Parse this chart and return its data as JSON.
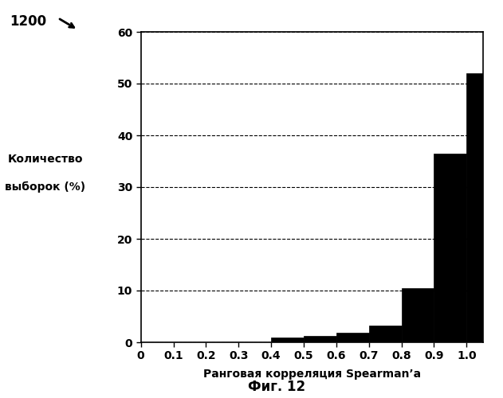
{
  "title": "",
  "xlabel": "Ранговая корреляция Spearman’a",
  "ylabel_line1": "Количество",
  "ylabel_line2": "выборок (%)",
  "fig_label": "Фиг. 12",
  "corner_label": "1200",
  "bar_edges": [
    0.0,
    0.1,
    0.2,
    0.3,
    0.4,
    0.5,
    0.6,
    0.7,
    0.8,
    0.9,
    1.0
  ],
  "bar_heights": [
    0.0,
    0.0,
    0.0,
    0.0,
    1.0,
    1.3,
    1.8,
    3.2,
    10.5,
    36.5,
    52.0
  ],
  "bar_color": "#000000",
  "ylim": [
    0,
    60
  ],
  "xlim": [
    0,
    1.05
  ],
  "yticks": [
    0,
    10,
    20,
    30,
    40,
    50,
    60
  ],
  "xticks": [
    0.0,
    0.1,
    0.2,
    0.3,
    0.4,
    0.5,
    0.6,
    0.7,
    0.8,
    0.9,
    1.0
  ],
  "xtick_labels": [
    "0",
    "0.1",
    "0.2",
    "0.3",
    "0.4",
    "0.5",
    "0.6",
    "0.7",
    "0.8",
    "0.9",
    "1.0"
  ],
  "grid_color": "#000000",
  "background_color": "#ffffff"
}
